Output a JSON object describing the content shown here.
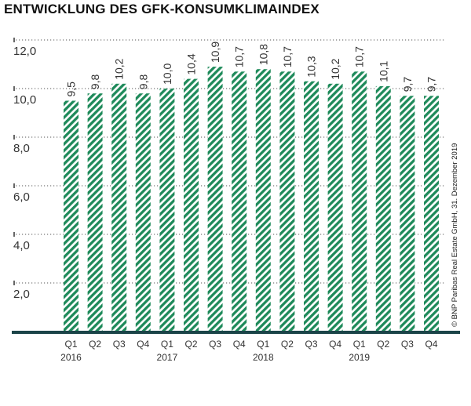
{
  "chart_data": {
    "type": "bar",
    "title": "ENTWICKLUNG DES GFK-KONSUMKLIMAINDEX",
    "categories": [
      "Q1",
      "Q2",
      "Q3",
      "Q4",
      "Q1",
      "Q2",
      "Q3",
      "Q4",
      "Q1",
      "Q2",
      "Q3",
      "Q4",
      "Q1",
      "Q2",
      "Q3",
      "Q4"
    ],
    "years": [
      {
        "label": "2016",
        "quarter_index": 0
      },
      {
        "label": "2017",
        "quarter_index": 4
      },
      {
        "label": "2018",
        "quarter_index": 8
      },
      {
        "label": "2019",
        "quarter_index": 12
      }
    ],
    "values": [
      9.5,
      9.8,
      10.2,
      9.8,
      10.0,
      10.4,
      10.9,
      10.7,
      10.8,
      10.7,
      10.3,
      10.2,
      10.7,
      10.1,
      9.7,
      9.7
    ],
    "value_labels": [
      "9,5",
      "9,8",
      "10,2",
      "9,8",
      "10,0",
      "10,4",
      "10,9",
      "10,7",
      "10,8",
      "10,7",
      "10,3",
      "10,2",
      "10,7",
      "10,1",
      "9,7",
      "9,7"
    ],
    "yticks": [
      2,
      4,
      6,
      8,
      10,
      12
    ],
    "ytick_labels": [
      "2,0",
      "4,0",
      "6,0",
      "8,0",
      "10,0",
      "12,0"
    ],
    "ylim": [
      0,
      12
    ],
    "grid": true,
    "bar_pattern": "diagonal-hatch",
    "colors": {
      "bar": "#1e8a5a",
      "baseline": "#1b4448",
      "grid": "#555555"
    },
    "source": "© BNP Paribas Real Estate GmbH, 31. Dezember 2019"
  }
}
